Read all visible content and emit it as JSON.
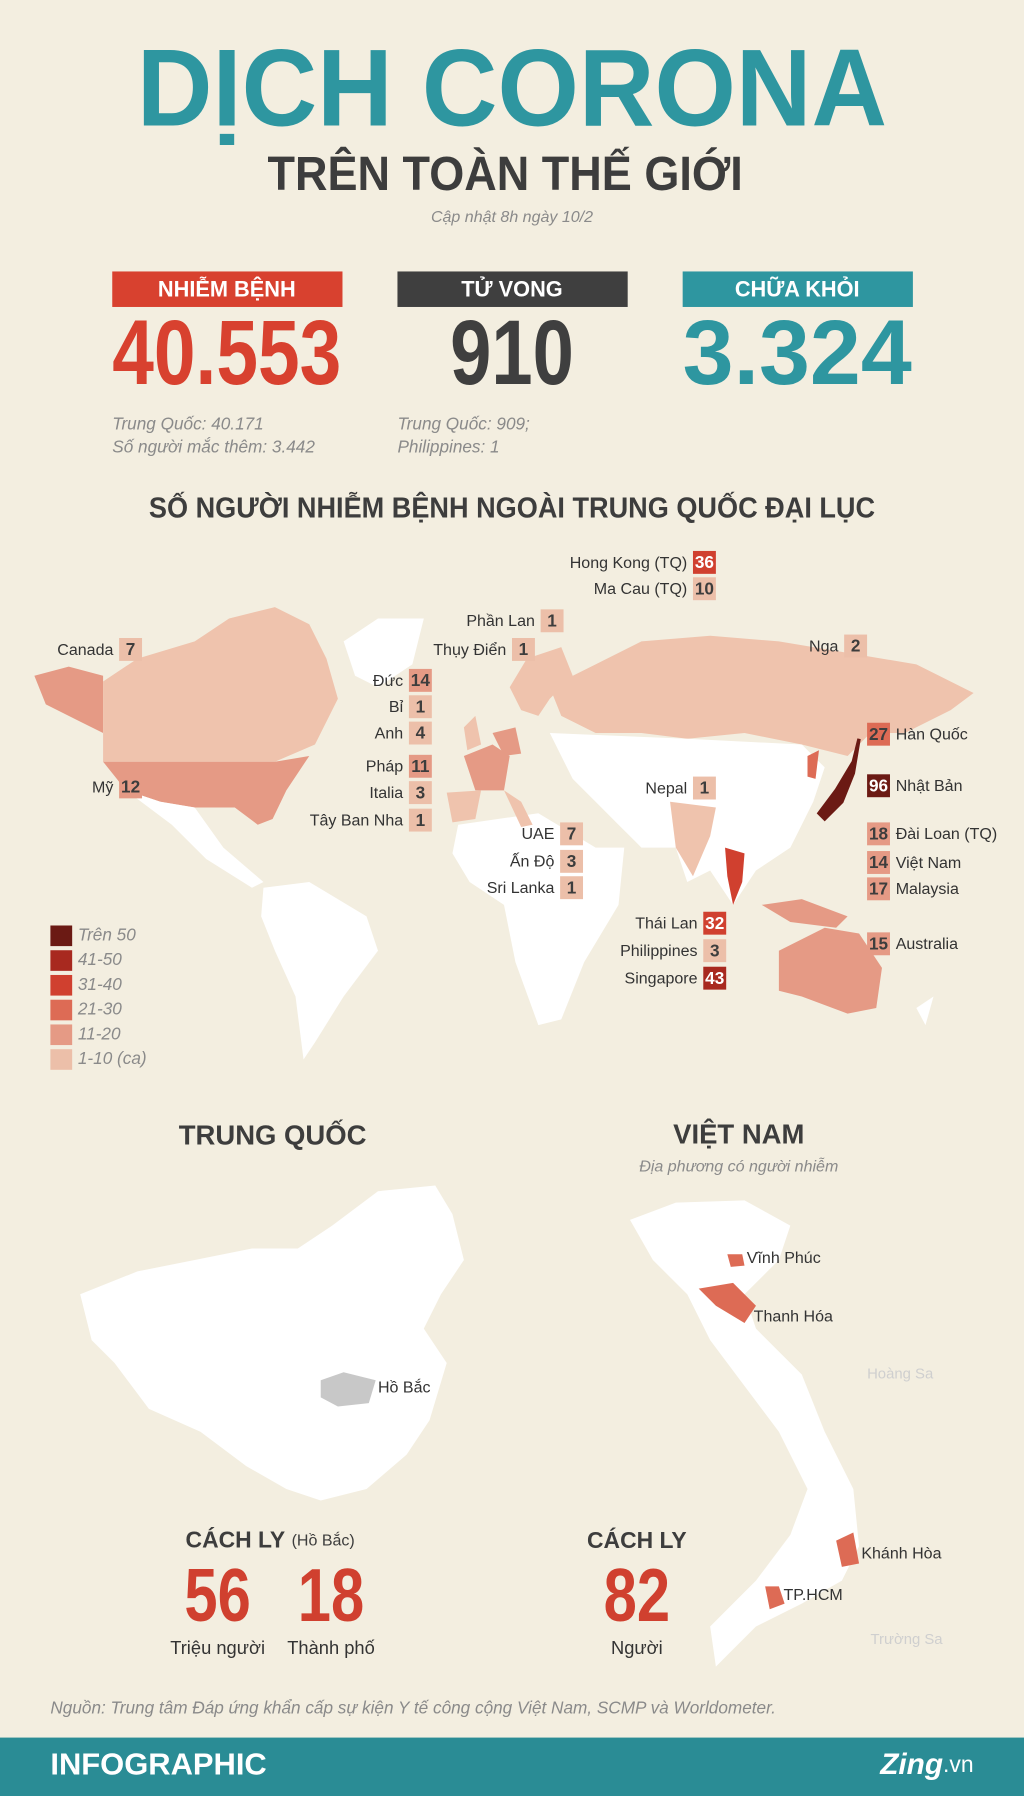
{
  "header": {
    "title": "DỊCH CORONA",
    "subtitle": "TRÊN TOÀN THẾ GIỚI",
    "updated": "Cập nhật 8h ngày 10/2"
  },
  "stats": [
    {
      "label": "NHIỄM BỆNH",
      "value": "40.553",
      "notes": [
        "Trung Quốc: 40.171",
        "Số người mắc thêm: 3.442"
      ],
      "color": "#d8412f"
    },
    {
      "label": "TỬ VONG",
      "value": 910,
      "notes": [
        "Trung Quốc: 909;",
        "Philippines: 1"
      ],
      "color": "#3f3f3f"
    },
    {
      "label": "CHỮA KHỎI",
      "value": "3.324",
      "notes": [],
      "color": "#2e96a0"
    }
  ],
  "world": {
    "title": "SỐ NGƯỜI NHIỄM BỆNH NGOÀI TRUNG QUỐC ĐẠI LỤC",
    "countries": [
      {
        "name": "Hong Kong (TQ)",
        "value": 36,
        "color": "#d0402f"
      },
      {
        "name": "Ma Cau (TQ)",
        "value": 10,
        "color": "#ecbfa9"
      },
      {
        "name": "Phần Lan",
        "value": 1,
        "color": "#ecbfa9"
      },
      {
        "name": "Thụy Điển",
        "value": 1,
        "color": "#ecbfa9"
      },
      {
        "name": "Canada",
        "value": 7,
        "color": "#ecbfa9"
      },
      {
        "name": "Nga",
        "value": 2,
        "color": "#ecbfa9"
      },
      {
        "name": "Đức",
        "value": 14,
        "color": "#e59a85"
      },
      {
        "name": "Bỉ",
        "value": 1,
        "color": "#ecbfa9"
      },
      {
        "name": "Anh",
        "value": 4,
        "color": "#ecbfa9"
      },
      {
        "name": "Pháp",
        "value": 11,
        "color": "#e59a85"
      },
      {
        "name": "Italia",
        "value": 3,
        "color": "#ecbfa9"
      },
      {
        "name": "Tây Ban Nha",
        "value": 1,
        "color": "#ecbfa9"
      },
      {
        "name": "Mỹ",
        "value": 12,
        "color": "#e59a85"
      },
      {
        "name": "Hàn Quốc",
        "value": 27,
        "color": "#dd6b55"
      },
      {
        "name": "Nhật Bản",
        "value": 96,
        "color": "#6b1a14"
      },
      {
        "name": "Nepal",
        "value": 1,
        "color": "#ecbfa9"
      },
      {
        "name": "UAE",
        "value": 7,
        "color": "#ecbfa9"
      },
      {
        "name": "Ấn Độ",
        "value": 3,
        "color": "#ecbfa9"
      },
      {
        "name": "Sri Lanka",
        "value": 1,
        "color": "#ecbfa9"
      },
      {
        "name": "Đài Loan (TQ)",
        "value": 18,
        "color": "#e59a85"
      },
      {
        "name": "Việt Nam",
        "value": 14,
        "color": "#e59a85"
      },
      {
        "name": "Malaysia",
        "value": 17,
        "color": "#e59a85"
      },
      {
        "name": "Thái Lan",
        "value": 32,
        "color": "#d0402f"
      },
      {
        "name": "Philippines",
        "value": 3,
        "color": "#ecbfa9"
      },
      {
        "name": "Singapore",
        "value": 43,
        "color": "#a8291f"
      },
      {
        "name": "Australia",
        "value": 15,
        "color": "#e59a85"
      }
    ],
    "legend": [
      {
        "label": "Trên 50",
        "color": "#6b1a14"
      },
      {
        "label": "41-50",
        "color": "#a8291f"
      },
      {
        "label": "31-40",
        "color": "#d0402f"
      },
      {
        "label": "21-30",
        "color": "#dd6b55"
      },
      {
        "label": "11-20",
        "color": "#e59a85"
      },
      {
        "label": "1-10 (ca)",
        "color": "#ecbfa9"
      }
    ]
  },
  "china": {
    "title": "TRUNG QUỐC",
    "region": "Hồ Bắc",
    "quarantine": {
      "title": "CÁCH LY",
      "note": "(Hồ Bắc)",
      "items": [
        {
          "value": 56,
          "label": "Triệu người"
        },
        {
          "value": 18,
          "label": "Thành phố"
        }
      ]
    }
  },
  "vietnam": {
    "title": "VIỆT NAM",
    "subtitle": "Địa phương có người nhiễm",
    "places": [
      "Vĩnh Phúc",
      "Thanh Hóa",
      "Khánh Hòa",
      "TP.HCM"
    ],
    "islands": [
      "Hoàng Sa",
      "Trường Sa"
    ],
    "quarantine": {
      "title": "CÁCH LY",
      "items": [
        {
          "value": 82,
          "label": "Người"
        }
      ]
    }
  },
  "source": "Nguồn: Trung tâm Đáp ứng khẩn cấp sự kiện Y tế công cộng Việt Nam, SCMP và Worldometer.",
  "footer": {
    "brand": "INFOGRAPHIC",
    "logo": "Zing",
    "domain": ".vn"
  }
}
